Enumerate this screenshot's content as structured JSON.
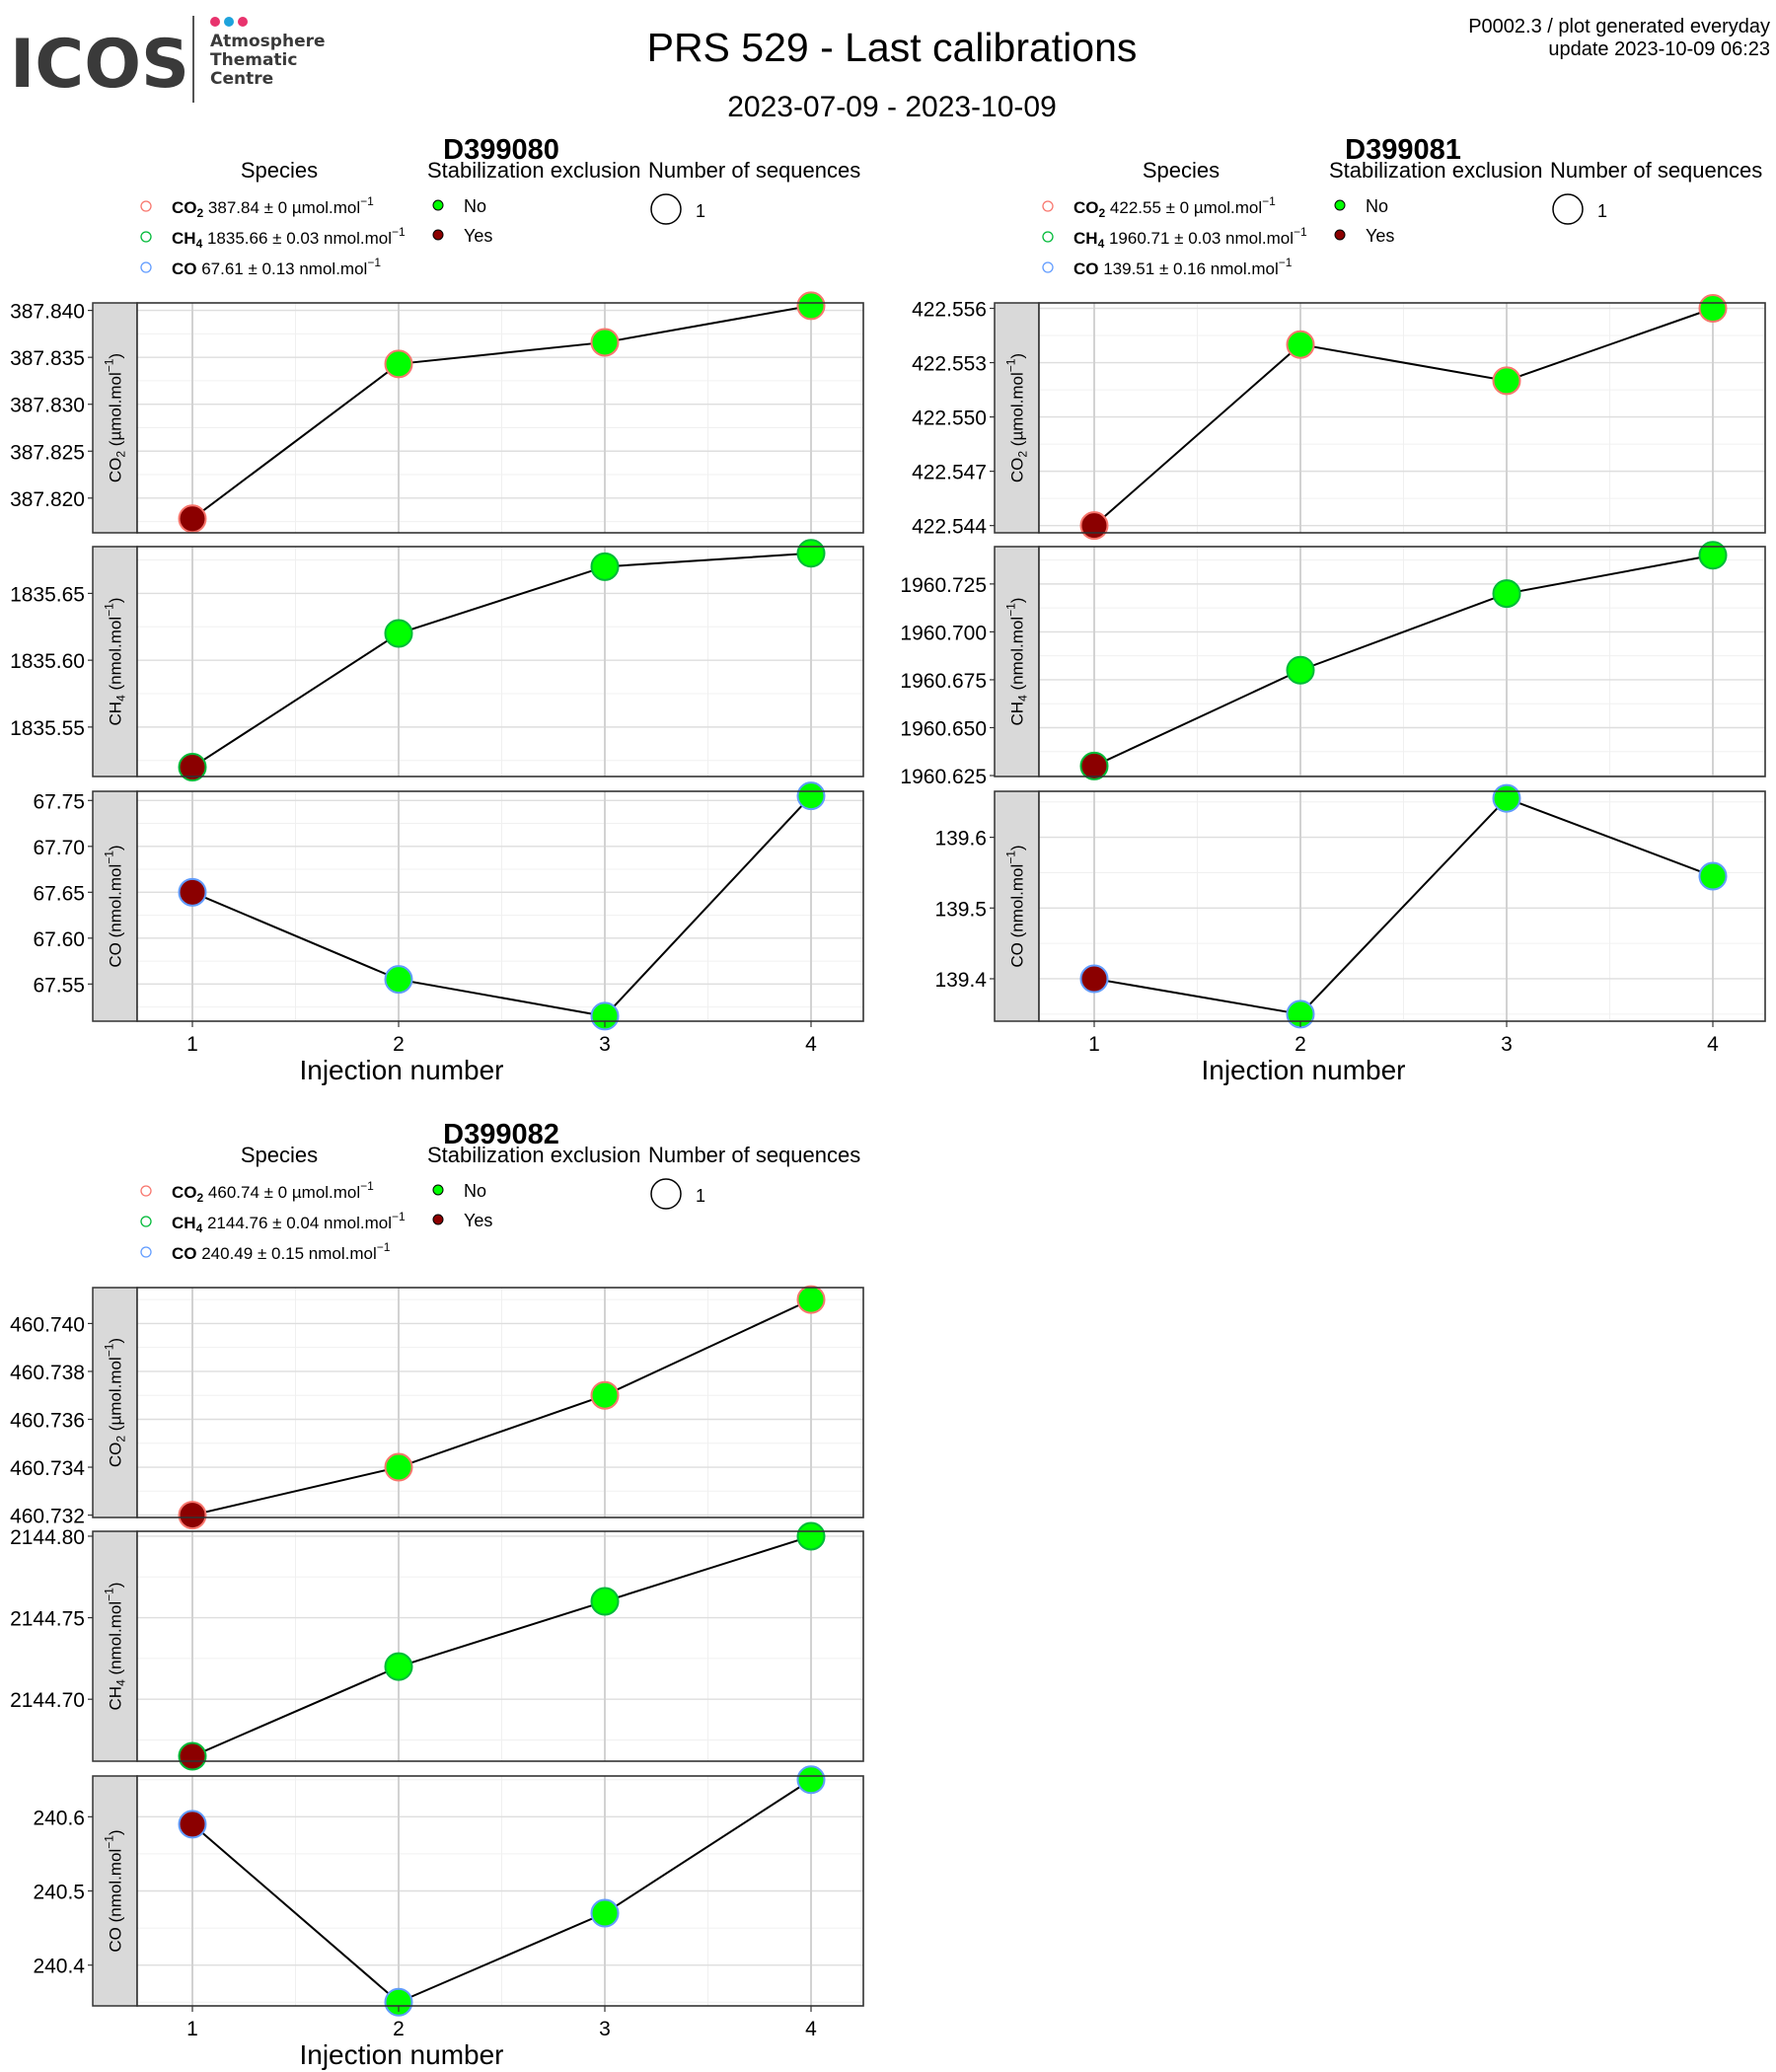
{
  "header": {
    "logo": {
      "wordmark": "ICOS",
      "subtitle_lines": [
        "Atmosphere",
        "Thematic",
        "Centre"
      ],
      "dot_colors": [
        "#e8336d",
        "#1ea3dc",
        "#e8336d"
      ]
    },
    "title": "PRS 529 - Last calibrations",
    "date_range": "2023-07-09 - 2023-10-09",
    "info_line1": "P0002.3 / plot generated everyday",
    "info_line2": "update  2023-10-09 06:23"
  },
  "legend_labels": {
    "species_title": "Species",
    "stabilization_title": "Stabilization exclusion",
    "sequences_title": "Number of sequences",
    "stab_no": "No",
    "stab_yes": "Yes",
    "sequences_value": "1"
  },
  "colors": {
    "co2": "#f8766d",
    "ch4": "#00ba38",
    "co": "#619cff",
    "no": "#00ff00",
    "yes": "#8b0000",
    "strip": "#d9d9d9"
  },
  "chart_data": [
    {
      "type": "scatter",
      "tank": "D399080",
      "xlabel": "Injection number",
      "x": [
        1,
        2,
        3,
        4
      ],
      "species": [
        {
          "name": "CO2",
          "sub": "2",
          "base": "CO",
          "summary": "387.84 ± 0 µmol.mol",
          "ylabel": "(µmol.mol",
          "values": [
            387.8178,
            387.8343,
            387.8366,
            387.8405
          ],
          "excluded": [
            true,
            false,
            false,
            false
          ],
          "ylim": [
            387.8163,
            387.8408
          ],
          "ticks": [
            387.82,
            387.825,
            387.83,
            387.835,
            387.84
          ],
          "tick_decimals": 3
        },
        {
          "name": "CH4",
          "sub": "4",
          "base": "CH",
          "summary": "1835.66 ± 0.03 nmol.mol",
          "ylabel": "(nmol.mol",
          "values": [
            1835.52,
            1835.62,
            1835.67,
            1835.68
          ],
          "excluded": [
            true,
            false,
            false,
            false
          ],
          "ylim": [
            1835.513,
            1835.685
          ],
          "ticks": [
            1835.55,
            1835.6,
            1835.65
          ],
          "tick_decimals": 2
        },
        {
          "name": "CO",
          "sub": "",
          "base": "CO",
          "summary": "67.61 ± 0.13 nmol.mol",
          "ylabel": "(nmol.mol",
          "values": [
            67.65,
            67.555,
            67.515,
            67.755
          ],
          "excluded": [
            true,
            false,
            false,
            false
          ],
          "ylim": [
            67.5095,
            67.76
          ],
          "ticks": [
            67.55,
            67.6,
            67.65,
            67.7,
            67.75
          ],
          "tick_decimals": 2
        }
      ]
    },
    {
      "type": "scatter",
      "tank": "D399081",
      "xlabel": "Injection number",
      "x": [
        1,
        2,
        3,
        4
      ],
      "species": [
        {
          "name": "CO2",
          "sub": "2",
          "base": "CO",
          "summary": "422.55 ± 0 µmol.mol",
          "ylabel": "(µmol.mol",
          "values": [
            422.544,
            422.554,
            422.552,
            422.556
          ],
          "excluded": [
            true,
            false,
            false,
            false
          ],
          "ylim": [
            422.5436,
            422.5563
          ],
          "ticks": [
            422.544,
            422.547,
            422.55,
            422.553,
            422.556
          ],
          "tick_decimals": 3
        },
        {
          "name": "CH4",
          "sub": "4",
          "base": "CH",
          "summary": "1960.71 ± 0.03 nmol.mol",
          "ylabel": "(nmol.mol",
          "values": [
            1960.63,
            1960.68,
            1960.72,
            1960.74
          ],
          "excluded": [
            true,
            false,
            false,
            false
          ],
          "ylim": [
            1960.6245,
            1960.7445
          ],
          "ticks": [
            1960.625,
            1960.65,
            1960.675,
            1960.7,
            1960.725
          ],
          "tick_decimals": 3
        },
        {
          "name": "CO",
          "sub": "",
          "base": "CO",
          "summary": "139.51 ± 0.16 nmol.mol",
          "ylabel": "(nmol.mol",
          "values": [
            139.4,
            139.35,
            139.655,
            139.545
          ],
          "excluded": [
            true,
            false,
            false,
            false
          ],
          "ylim": [
            139.34,
            139.665
          ],
          "ticks": [
            139.4,
            139.5,
            139.6
          ],
          "tick_decimals": 1
        }
      ]
    },
    {
      "type": "scatter",
      "tank": "D399082",
      "xlabel": "Injection number",
      "x": [
        1,
        2,
        3,
        4
      ],
      "species": [
        {
          "name": "CO2",
          "sub": "2",
          "base": "CO",
          "summary": "460.74 ± 0 µmol.mol",
          "ylabel": "(µmol.mol",
          "values": [
            460.732,
            460.734,
            460.737,
            460.741
          ],
          "excluded": [
            true,
            false,
            false,
            false
          ],
          "ylim": [
            460.7319,
            460.7415
          ],
          "ticks": [
            460.732,
            460.734,
            460.736,
            460.738,
            460.74
          ],
          "tick_decimals": 3
        },
        {
          "name": "CH4",
          "sub": "4",
          "base": "CH",
          "summary": "2144.76 ± 0.04 nmol.mol",
          "ylabel": "(nmol.mol",
          "values": [
            2144.665,
            2144.72,
            2144.76,
            2144.8
          ],
          "excluded": [
            true,
            false,
            false,
            false
          ],
          "ylim": [
            2144.662,
            2144.803
          ],
          "ticks": [
            2144.7,
            2144.75,
            2144.8
          ],
          "tick_decimals": 2
        },
        {
          "name": "CO",
          "sub": "",
          "base": "CO",
          "summary": "240.49 ± 0.15 nmol.mol",
          "ylabel": "(nmol.mol",
          "values": [
            240.59,
            240.35,
            240.47,
            240.65
          ],
          "excluded": [
            true,
            false,
            false,
            false
          ],
          "ylim": [
            240.345,
            240.655
          ],
          "ticks": [
            240.4,
            240.5,
            240.6
          ],
          "tick_decimals": 1
        }
      ]
    }
  ]
}
